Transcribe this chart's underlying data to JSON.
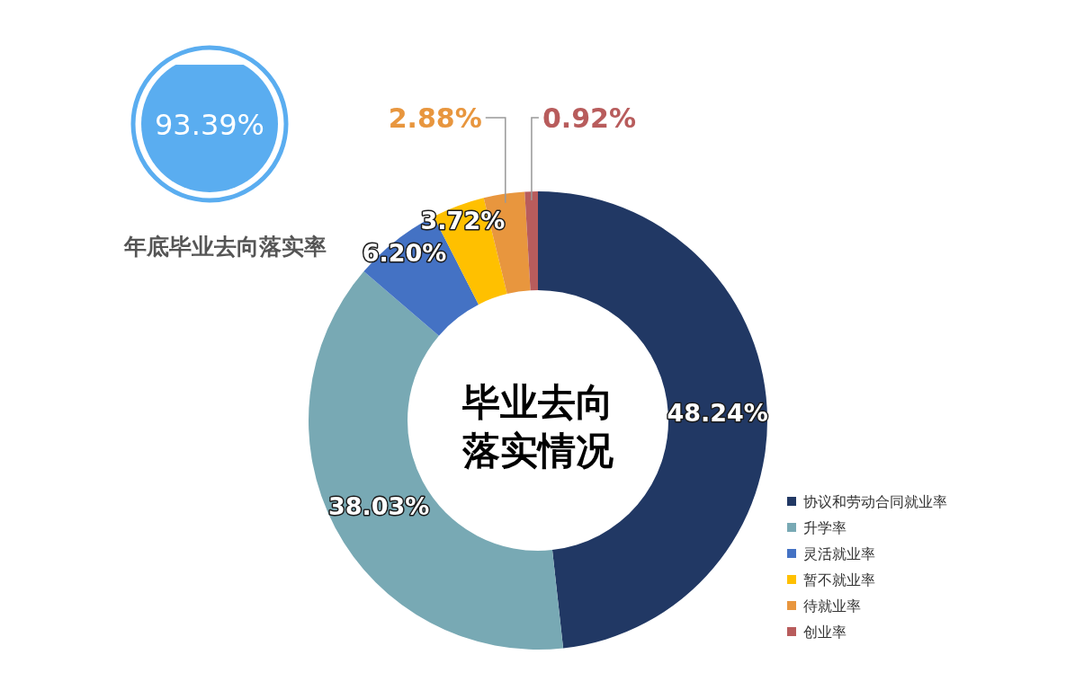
{
  "chart_data": [
    {
      "type": "other",
      "title": "年底毕业去向落实率",
      "values": [
        93.39
      ],
      "value_labels": [
        "93.39%"
      ],
      "color": "#5aadf0"
    },
    {
      "type": "donut",
      "title": "毕业去向落实情况",
      "categories": [
        "协议和劳动合同就业率",
        "升学率",
        "灵活就业率",
        "暂不就业率",
        "待就业率",
        "创业率"
      ],
      "values": [
        48.24,
        38.03,
        6.2,
        3.72,
        2.88,
        0.92
      ],
      "value_labels": [
        "48.24%",
        "38.03%",
        "6.20%",
        "3.72%",
        "2.88%",
        "0.92%"
      ],
      "colors": [
        "#213864",
        "#78a9b4",
        "#4472c4",
        "#ffc000",
        "#e8963e",
        "#b85c5c"
      ],
      "legend": "bottom right"
    }
  ]
}
